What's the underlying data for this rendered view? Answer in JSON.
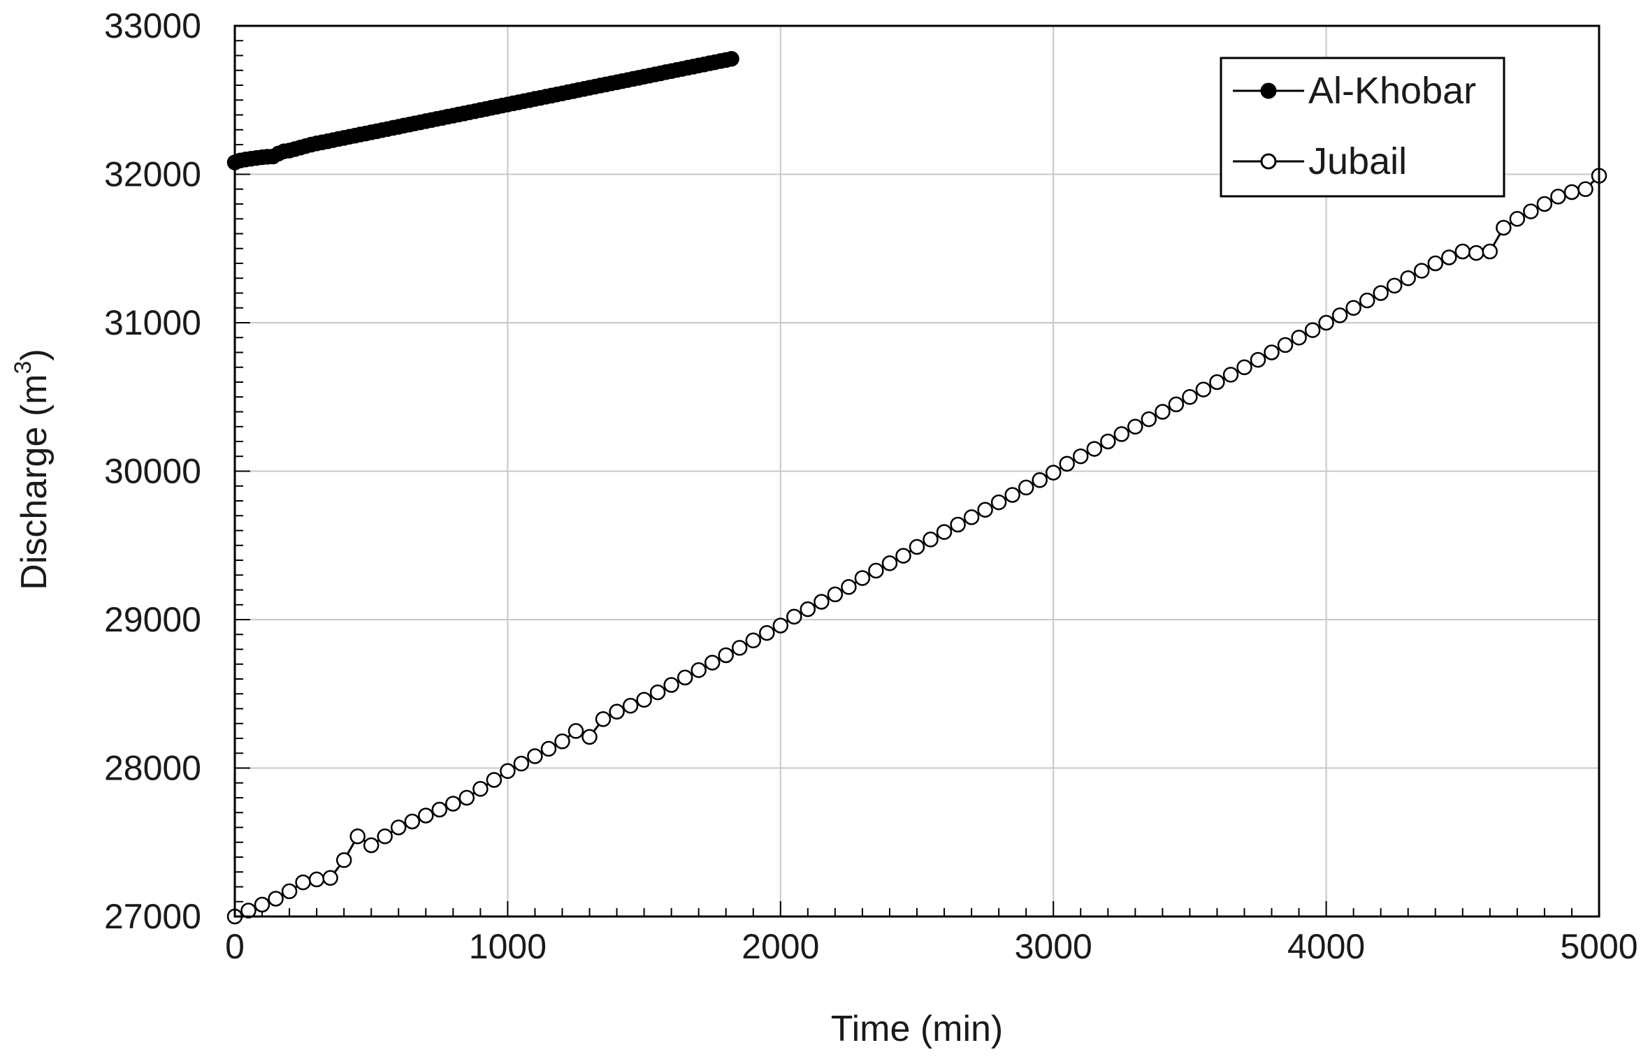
{
  "chart_data": {
    "type": "scatter",
    "title": "",
    "xlabel": "Time  (min)",
    "ylabel": {
      "main": "Discharge (m",
      "sup": "3",
      "close": ")"
    },
    "xlim": [
      0,
      5000
    ],
    "ylim": [
      27000,
      33000
    ],
    "xticks": [
      0,
      1000,
      2000,
      3000,
      4000,
      5000
    ],
    "yticks": [
      27000,
      28000,
      29000,
      30000,
      31000,
      32000,
      33000
    ],
    "grid": true,
    "legend_position": "top-right",
    "series": [
      {
        "name": "Al-Khobar",
        "marker": "filled-circle",
        "color": "#000000",
        "points": [
          [
            0,
            32080
          ],
          [
            20,
            32093
          ],
          [
            40,
            32100
          ],
          [
            60,
            32105
          ],
          [
            80,
            32110
          ],
          [
            100,
            32115
          ],
          [
            120,
            32118
          ],
          [
            140,
            32120
          ],
          [
            160,
            32140
          ],
          [
            180,
            32155
          ],
          [
            200,
            32160
          ],
          [
            220,
            32170
          ],
          [
            240,
            32180
          ],
          [
            260,
            32190
          ],
          [
            280,
            32200
          ],
          [
            300,
            32208
          ],
          [
            320,
            32215
          ],
          [
            340,
            32222
          ],
          [
            360,
            32230
          ],
          [
            380,
            32238
          ],
          [
            400,
            32245
          ],
          [
            420,
            32253
          ],
          [
            440,
            32260
          ],
          [
            460,
            32268
          ],
          [
            480,
            32275
          ],
          [
            500,
            32283
          ],
          [
            520,
            32290
          ],
          [
            540,
            32298
          ],
          [
            560,
            32305
          ],
          [
            580,
            32313
          ],
          [
            600,
            32320
          ],
          [
            620,
            32328
          ],
          [
            640,
            32335
          ],
          [
            660,
            32343
          ],
          [
            680,
            32350
          ],
          [
            700,
            32358
          ],
          [
            720,
            32365
          ],
          [
            740,
            32373
          ],
          [
            760,
            32380
          ],
          [
            780,
            32388
          ],
          [
            800,
            32395
          ],
          [
            820,
            32403
          ],
          [
            840,
            32410
          ],
          [
            860,
            32418
          ],
          [
            880,
            32425
          ],
          [
            900,
            32433
          ],
          [
            920,
            32440
          ],
          [
            940,
            32448
          ],
          [
            960,
            32455
          ],
          [
            980,
            32463
          ],
          [
            1000,
            32470
          ],
          [
            1020,
            32478
          ],
          [
            1040,
            32485
          ],
          [
            1060,
            32493
          ],
          [
            1080,
            32500
          ],
          [
            1100,
            32508
          ],
          [
            1120,
            32515
          ],
          [
            1140,
            32523
          ],
          [
            1160,
            32530
          ],
          [
            1180,
            32538
          ],
          [
            1200,
            32545
          ],
          [
            1220,
            32553
          ],
          [
            1240,
            32560
          ],
          [
            1260,
            32568
          ],
          [
            1280,
            32575
          ],
          [
            1300,
            32583
          ],
          [
            1320,
            32590
          ],
          [
            1340,
            32598
          ],
          [
            1360,
            32605
          ],
          [
            1380,
            32613
          ],
          [
            1400,
            32620
          ],
          [
            1420,
            32628
          ],
          [
            1440,
            32635
          ],
          [
            1460,
            32643
          ],
          [
            1480,
            32650
          ],
          [
            1500,
            32658
          ],
          [
            1520,
            32665
          ],
          [
            1540,
            32673
          ],
          [
            1560,
            32680
          ],
          [
            1580,
            32688
          ],
          [
            1600,
            32695
          ],
          [
            1620,
            32703
          ],
          [
            1640,
            32710
          ],
          [
            1660,
            32718
          ],
          [
            1680,
            32725
          ],
          [
            1700,
            32733
          ],
          [
            1720,
            32740
          ],
          [
            1740,
            32748
          ],
          [
            1760,
            32755
          ],
          [
            1780,
            32763
          ],
          [
            1800,
            32770
          ],
          [
            1820,
            32778
          ]
        ]
      },
      {
        "name": "Jubail",
        "marker": "open-circle",
        "color": "#000000",
        "points": [
          [
            0,
            27000
          ],
          [
            50,
            27040
          ],
          [
            100,
            27080
          ],
          [
            150,
            27120
          ],
          [
            200,
            27170
          ],
          [
            250,
            27230
          ],
          [
            300,
            27250
          ],
          [
            350,
            27260
          ],
          [
            400,
            27380
          ],
          [
            450,
            27540
          ],
          [
            500,
            27480
          ],
          [
            550,
            27540
          ],
          [
            600,
            27600
          ],
          [
            650,
            27640
          ],
          [
            700,
            27680
          ],
          [
            750,
            27720
          ],
          [
            800,
            27760
          ],
          [
            850,
            27800
          ],
          [
            900,
            27860
          ],
          [
            950,
            27920
          ],
          [
            1000,
            27980
          ],
          [
            1050,
            28030
          ],
          [
            1100,
            28080
          ],
          [
            1150,
            28130
          ],
          [
            1200,
            28180
          ],
          [
            1250,
            28250
          ],
          [
            1300,
            28210
          ],
          [
            1350,
            28330
          ],
          [
            1400,
            28380
          ],
          [
            1450,
            28420
          ],
          [
            1500,
            28460
          ],
          [
            1550,
            28510
          ],
          [
            1600,
            28560
          ],
          [
            1650,
            28610
          ],
          [
            1700,
            28660
          ],
          [
            1750,
            28710
          ],
          [
            1800,
            28760
          ],
          [
            1850,
            28810
          ],
          [
            1900,
            28860
          ],
          [
            1950,
            28910
          ],
          [
            2000,
            28960
          ],
          [
            2050,
            29020
          ],
          [
            2100,
            29070
          ],
          [
            2150,
            29120
          ],
          [
            2200,
            29170
          ],
          [
            2250,
            29220
          ],
          [
            2300,
            29280
          ],
          [
            2350,
            29330
          ],
          [
            2400,
            29380
          ],
          [
            2450,
            29430
          ],
          [
            2500,
            29490
          ],
          [
            2550,
            29540
          ],
          [
            2600,
            29590
          ],
          [
            2650,
            29640
          ],
          [
            2700,
            29690
          ],
          [
            2750,
            29740
          ],
          [
            2800,
            29790
          ],
          [
            2850,
            29840
          ],
          [
            2900,
            29890
          ],
          [
            2950,
            29940
          ],
          [
            3000,
            29990
          ],
          [
            3050,
            30050
          ],
          [
            3100,
            30100
          ],
          [
            3150,
            30150
          ],
          [
            3200,
            30200
          ],
          [
            3250,
            30250
          ],
          [
            3300,
            30300
          ],
          [
            3350,
            30350
          ],
          [
            3400,
            30400
          ],
          [
            3450,
            30450
          ],
          [
            3500,
            30500
          ],
          [
            3550,
            30550
          ],
          [
            3600,
            30600
          ],
          [
            3650,
            30650
          ],
          [
            3700,
            30700
          ],
          [
            3750,
            30750
          ],
          [
            3800,
            30800
          ],
          [
            3850,
            30850
          ],
          [
            3900,
            30900
          ],
          [
            3950,
            30950
          ],
          [
            4000,
            31000
          ],
          [
            4050,
            31050
          ],
          [
            4100,
            31100
          ],
          [
            4150,
            31150
          ],
          [
            4200,
            31200
          ],
          [
            4250,
            31250
          ],
          [
            4300,
            31300
          ],
          [
            4350,
            31350
          ],
          [
            4400,
            31400
          ],
          [
            4450,
            31440
          ],
          [
            4500,
            31480
          ],
          [
            4550,
            31470
          ],
          [
            4600,
            31480
          ],
          [
            4650,
            31640
          ],
          [
            4700,
            31700
          ],
          [
            4750,
            31750
          ],
          [
            4800,
            31800
          ],
          [
            4850,
            31850
          ],
          [
            4900,
            31880
          ],
          [
            4950,
            31900
          ],
          [
            5000,
            31990
          ]
        ]
      }
    ]
  }
}
